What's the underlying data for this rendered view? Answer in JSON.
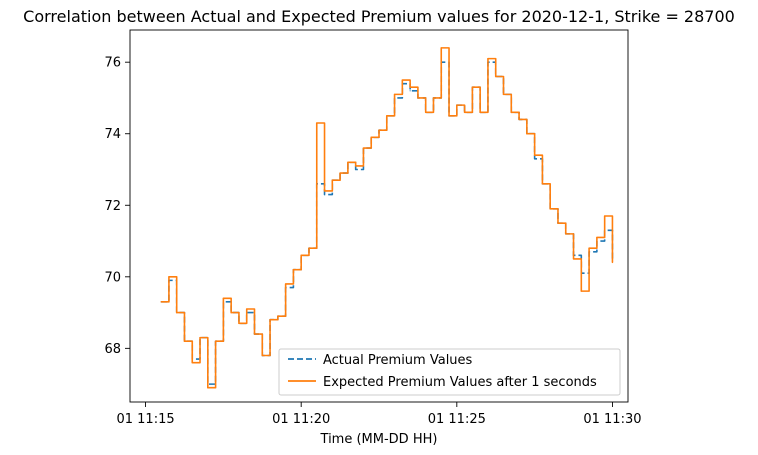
{
  "chart_data": {
    "type": "line",
    "title": "Correlation between Actual and Expected Premium values for 2020-12-1, Strike = 28700",
    "xlabel": "Time (MM-DD HH)",
    "ylabel": "",
    "x_ticks": [
      "01 11:15",
      "01 11:20",
      "01 11:25",
      "01 11:30"
    ],
    "y_ticks": [
      68,
      70,
      72,
      74,
      76
    ],
    "xlim": [
      "11:14:30",
      "11:30:30"
    ],
    "ylim": [
      66.5,
      76.9
    ],
    "grid": false,
    "legend_position": "lower-right",
    "series": [
      {
        "name": "Actual Premium Values",
        "style": "dashed",
        "color": "#1f77b4",
        "x": [
          "11:15:30",
          "11:15:45",
          "11:16:00",
          "11:16:15",
          "11:16:30",
          "11:16:45",
          "11:17:00",
          "11:17:15",
          "11:17:30",
          "11:17:45",
          "11:18:00",
          "11:18:15",
          "11:18:30",
          "11:18:45",
          "11:19:00",
          "11:19:15",
          "11:19:30",
          "11:19:45",
          "11:20:00",
          "11:20:15",
          "11:20:30",
          "11:20:45",
          "11:21:00",
          "11:21:15",
          "11:21:30",
          "11:21:45",
          "11:22:00",
          "11:22:15",
          "11:22:30",
          "11:22:45",
          "11:23:00",
          "11:23:15",
          "11:23:30",
          "11:23:45",
          "11:24:00",
          "11:24:15",
          "11:24:30",
          "11:24:45",
          "11:25:00",
          "11:25:15",
          "11:25:30",
          "11:25:45",
          "11:26:00",
          "11:26:15",
          "11:26:30",
          "11:26:45",
          "11:27:00",
          "11:27:15",
          "11:27:30",
          "11:27:45",
          "11:28:00",
          "11:28:15",
          "11:28:30",
          "11:28:45",
          "11:29:00",
          "11:29:15",
          "11:29:30",
          "11:29:45",
          "11:30:00"
        ],
        "values": [
          69.3,
          69.9,
          69.0,
          68.2,
          67.7,
          68.3,
          67.0,
          68.2,
          69.3,
          69.0,
          68.7,
          69.0,
          68.4,
          67.8,
          68.8,
          68.9,
          69.7,
          70.2,
          70.6,
          70.8,
          72.6,
          72.3,
          72.7,
          72.9,
          73.2,
          73.0,
          73.6,
          73.9,
          74.1,
          74.5,
          75.0,
          75.4,
          75.2,
          75.0,
          74.6,
          75.0,
          76.0,
          74.5,
          74.8,
          74.6,
          75.3,
          74.6,
          76.0,
          75.6,
          75.1,
          74.6,
          74.4,
          74.0,
          73.3,
          72.6,
          71.9,
          71.5,
          71.2,
          70.6,
          70.1,
          70.7,
          71.0,
          71.3,
          70.5
        ]
      },
      {
        "name": "Expected Premium Values after 1 seconds",
        "style": "solid",
        "color": "#ff7f0e",
        "x": [
          "11:15:30",
          "11:15:45",
          "11:16:00",
          "11:16:15",
          "11:16:30",
          "11:16:45",
          "11:17:00",
          "11:17:15",
          "11:17:30",
          "11:17:45",
          "11:18:00",
          "11:18:15",
          "11:18:30",
          "11:18:45",
          "11:19:00",
          "11:19:15",
          "11:19:30",
          "11:19:45",
          "11:20:00",
          "11:20:15",
          "11:20:30",
          "11:20:45",
          "11:21:00",
          "11:21:15",
          "11:21:30",
          "11:21:45",
          "11:22:00",
          "11:22:15",
          "11:22:30",
          "11:22:45",
          "11:23:00",
          "11:23:15",
          "11:23:30",
          "11:23:45",
          "11:24:00",
          "11:24:15",
          "11:24:30",
          "11:24:45",
          "11:25:00",
          "11:25:15",
          "11:25:30",
          "11:25:45",
          "11:26:00",
          "11:26:15",
          "11:26:30",
          "11:26:45",
          "11:27:00",
          "11:27:15",
          "11:27:30",
          "11:27:45",
          "11:28:00",
          "11:28:15",
          "11:28:30",
          "11:28:45",
          "11:29:00",
          "11:29:15",
          "11:29:30",
          "11:29:45",
          "11:30:00"
        ],
        "values": [
          69.3,
          70.0,
          69.0,
          68.2,
          67.6,
          68.3,
          66.9,
          68.2,
          69.4,
          69.0,
          68.7,
          69.1,
          68.4,
          67.8,
          68.8,
          68.9,
          69.8,
          70.2,
          70.6,
          70.8,
          74.3,
          72.4,
          72.7,
          72.9,
          73.2,
          73.1,
          73.6,
          73.9,
          74.1,
          74.5,
          75.1,
          75.5,
          75.3,
          75.0,
          74.6,
          75.0,
          76.4,
          74.5,
          74.8,
          74.6,
          75.3,
          74.6,
          76.1,
          75.6,
          75.1,
          74.6,
          74.4,
          74.0,
          73.4,
          72.6,
          71.9,
          71.5,
          71.2,
          70.5,
          69.6,
          70.8,
          71.1,
          71.7,
          70.4
        ]
      }
    ],
    "colors": {
      "actual": "#1f77b4",
      "expected": "#ff7f0e"
    }
  }
}
